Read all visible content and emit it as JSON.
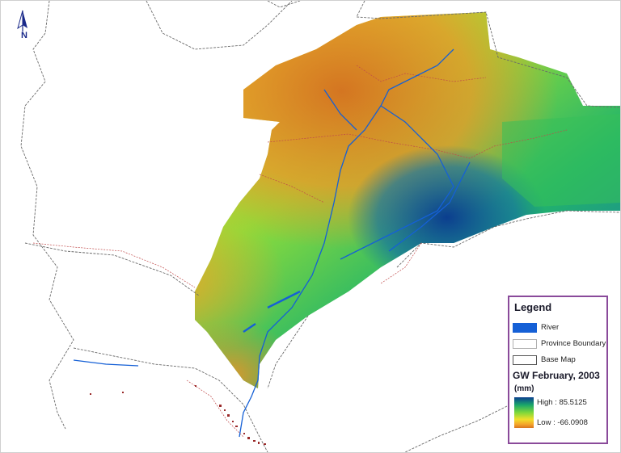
{
  "map": {
    "north_label": "N",
    "legend": {
      "title": "Legend",
      "items": [
        {
          "label": "River",
          "symbol": "river-swatch",
          "color": "#1560d6"
        },
        {
          "label": "Province Boundary",
          "symbol": "province-boundary-swatch",
          "color": "#b0b0b0"
        },
        {
          "label": "Base Map",
          "symbol": "base-map-swatch",
          "color": "#555555"
        }
      ],
      "layer_title": "GW February, 2003",
      "unit": "(mm)",
      "high_label": "High : 85.5125",
      "low_label": "Low : -66.0908",
      "ramp_colors": [
        "#0b3e8f",
        "#1aa76a",
        "#7fd83a",
        "#f0df2a",
        "#f4a62a",
        "#d9741f"
      ]
    },
    "colors": {
      "frame_border": "#cfcfcf",
      "legend_border": "#8a4a9a",
      "boundary_line": "#6a6a6a",
      "province_line": "#c04a4a",
      "river": "#1560d6"
    }
  }
}
